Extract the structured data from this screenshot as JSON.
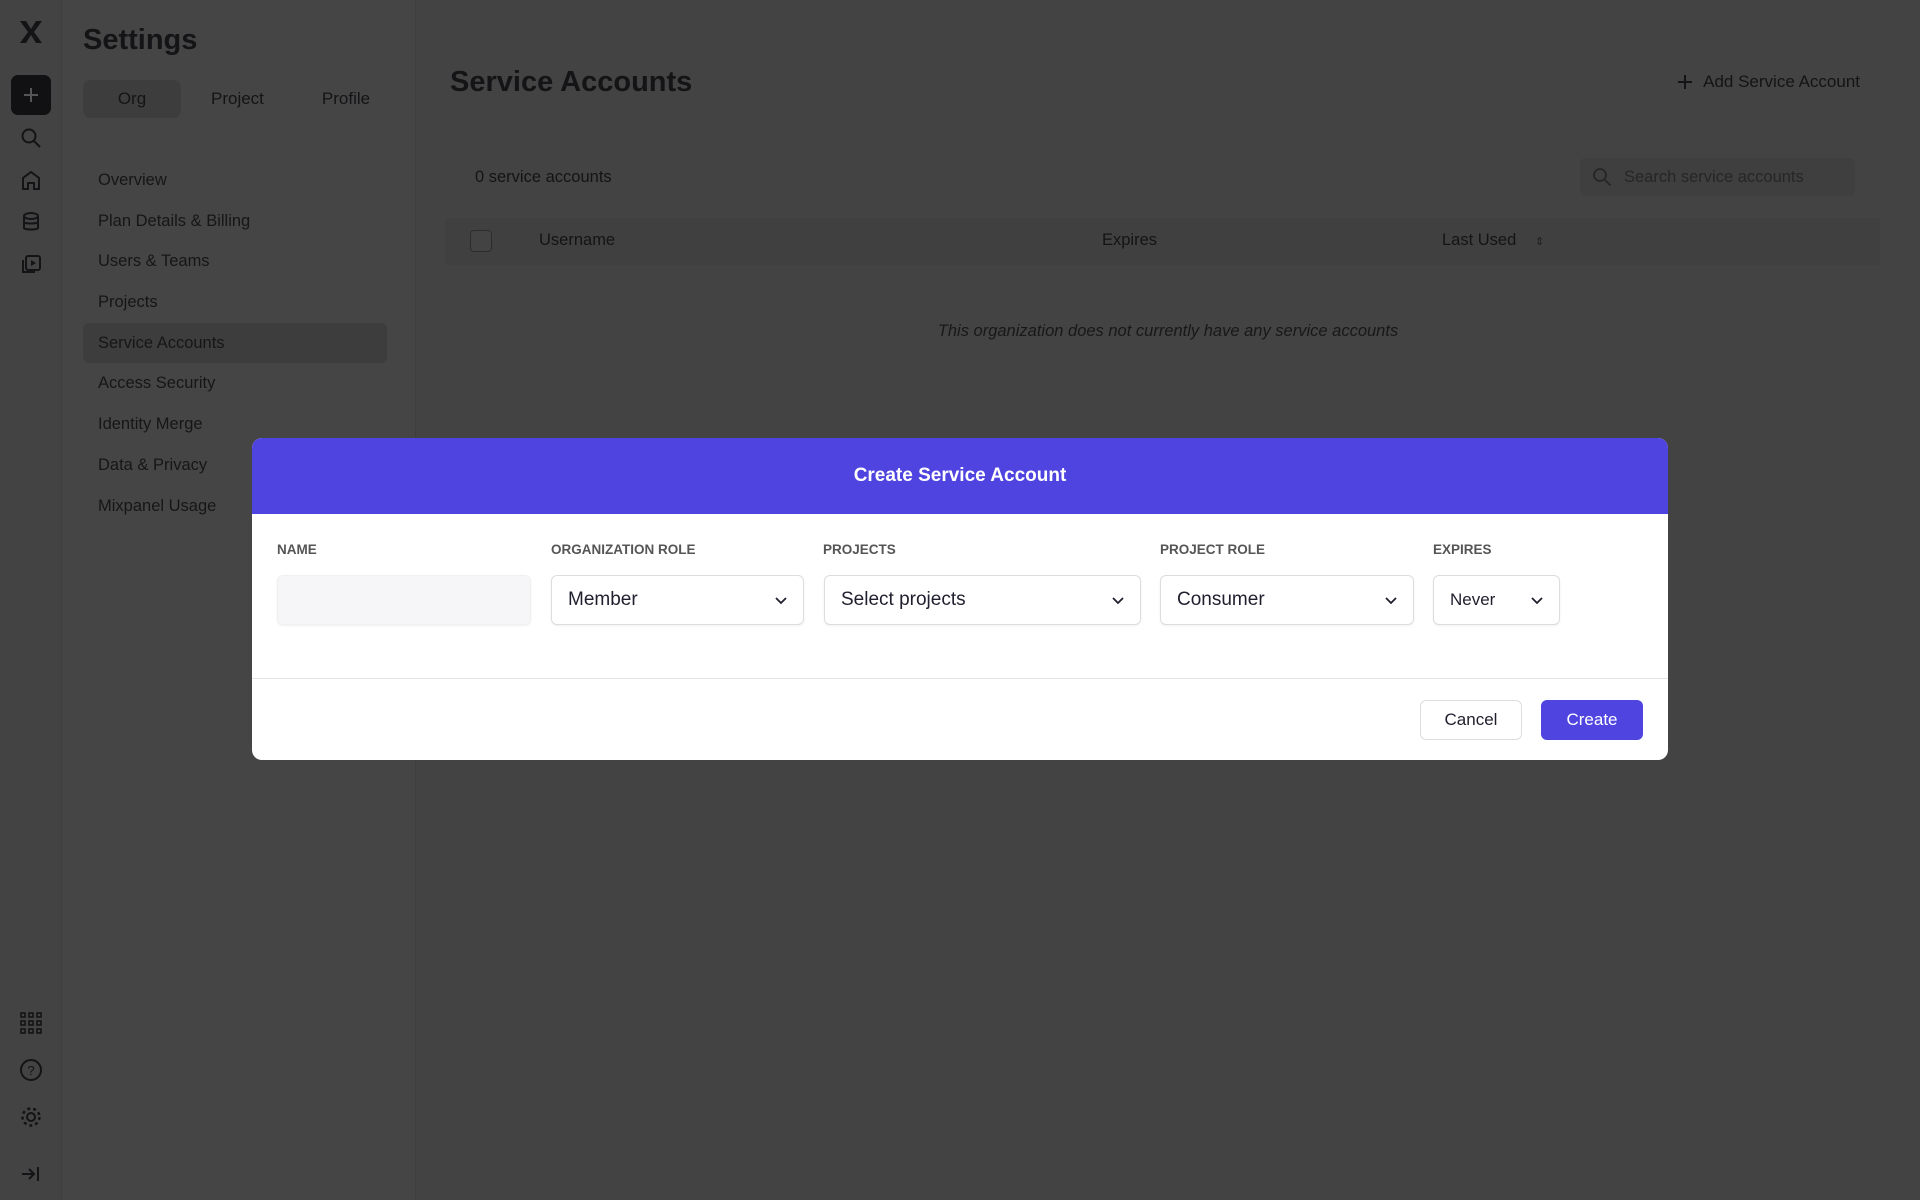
{
  "app": {
    "logo": "X"
  },
  "rail": {
    "icons": [
      "plus-icon",
      "search-icon",
      "home-icon",
      "database-icon",
      "media-icon",
      "apps-grid-icon",
      "help-icon",
      "gear-icon",
      "expand-icon"
    ]
  },
  "settings": {
    "title": "Settings",
    "tabs": [
      {
        "label": "Org",
        "active": true
      },
      {
        "label": "Project"
      },
      {
        "label": "Profile"
      }
    ],
    "nav": [
      {
        "label": "Overview"
      },
      {
        "label": "Plan Details & Billing"
      },
      {
        "label": "Users & Teams"
      },
      {
        "label": "Projects"
      },
      {
        "label": "Service Accounts",
        "selected": true
      },
      {
        "label": "Access Security"
      },
      {
        "label": "Identity Merge"
      },
      {
        "label": "Data & Privacy"
      },
      {
        "label": "Mixpanel Usage"
      }
    ]
  },
  "main": {
    "title": "Service Accounts",
    "add_label": "Add Service Account",
    "count": "0 service accounts",
    "search_placeholder": "Search service accounts",
    "columns": [
      "Username",
      "Expires",
      "Last Used"
    ],
    "empty": "This organization does not currently have any service accounts"
  },
  "modal": {
    "title": "Create Service Account",
    "fields": {
      "name_label": "NAME",
      "name_value": "",
      "org_role_label": "ORGANIZATION ROLE",
      "org_role_value": "Member",
      "projects_label": "PROJECTS",
      "projects_value": "Select projects",
      "project_role_label": "PROJECT ROLE",
      "project_role_value": "Consumer",
      "expires_label": "EXPIRES",
      "expires_value": "Never"
    },
    "cancel": "Cancel",
    "create": "Create"
  },
  "colors": {
    "accent": "#4f44e0"
  }
}
